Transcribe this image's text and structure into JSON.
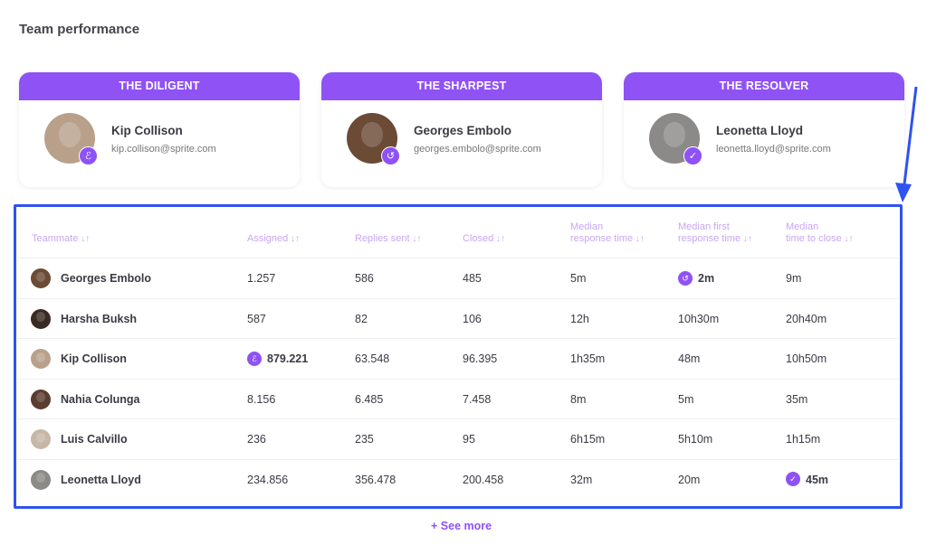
{
  "page": {
    "title": "Team performance",
    "see_more": "See more",
    "see_more_icon": "plus-icon"
  },
  "colors": {
    "accent": "#8f52f5",
    "header_text": "#c9a6f3",
    "annotation": "#2f52f0"
  },
  "awards": [
    {
      "label": "THE DILIGENT",
      "name": "Kip Collison",
      "email": "kip.collison@sprite.com",
      "icon": "flexed-arm-icon",
      "avatar_color": "#b9a08a"
    },
    {
      "label": "THE SHARPEST",
      "name": "Georges Embolo",
      "email": "georges.embolo@sprite.com",
      "icon": "clock-rewind-icon",
      "avatar_color": "#6b4a36"
    },
    {
      "label": "THE RESOLVER",
      "name": "Leonetta Lloyd",
      "email": "leonetta.lloyd@sprite.com",
      "icon": "check-icon",
      "avatar_color": "#8c8a88"
    }
  ],
  "table": {
    "sort_icon": "sort-arrows-icon",
    "columns": [
      "Teammate",
      "Assigned",
      "Replies sent",
      "Closed",
      "Median response time",
      "Median first response time",
      "Median time to close"
    ],
    "column_lines": [
      [
        "Teammate"
      ],
      [
        "Assigned"
      ],
      [
        "Replies sent"
      ],
      [
        "Closed"
      ],
      [
        "Median",
        "response time"
      ],
      [
        "Median first",
        "response time"
      ],
      [
        "Median",
        "time to close"
      ]
    ],
    "rows": [
      {
        "name": "Georges Embolo",
        "avatar_color": "#6b4a36",
        "cells": [
          "1.257",
          "586",
          "485",
          "5m",
          "2m",
          "9m"
        ],
        "highlight": {
          "col": 5,
          "icon": "clock-rewind-icon"
        }
      },
      {
        "name": "Harsha Buksh",
        "avatar_color": "#3a2a24",
        "cells": [
          "587",
          "82",
          "106",
          "12h",
          "10h30m",
          "20h40m"
        ]
      },
      {
        "name": "Kip Collison",
        "avatar_color": "#b9a08a",
        "cells": [
          "879.221",
          "63.548",
          "96.395",
          "1h35m",
          "48m",
          "10h50m"
        ],
        "highlight": {
          "col": 1,
          "icon": "flexed-arm-icon"
        }
      },
      {
        "name": "Nahia Colunga",
        "avatar_color": "#5a3c30",
        "cells": [
          "8.156",
          "6.485",
          "7.458",
          "8m",
          "5m",
          "35m"
        ]
      },
      {
        "name": "Luis Calvillo",
        "avatar_color": "#c7b7a6",
        "cells": [
          "236",
          "235",
          "95",
          "6h15m",
          "5h10m",
          "1h15m"
        ]
      },
      {
        "name": "Leonetta Lloyd",
        "avatar_color": "#8c8a88",
        "cells": [
          "234.856",
          "356.478",
          "200.458",
          "32m",
          "20m",
          "45m"
        ],
        "highlight": {
          "col": 6,
          "icon": "check-icon"
        }
      }
    ]
  }
}
